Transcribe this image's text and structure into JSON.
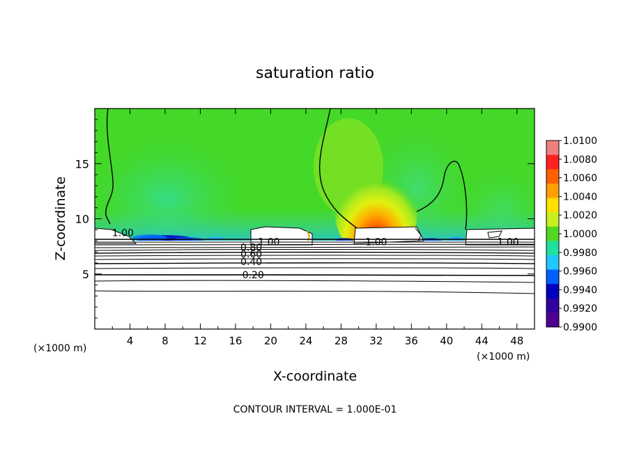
{
  "chart_data": {
    "type": "heatmap",
    "title": "saturation ratio",
    "xlabel": "X-coordinate",
    "ylabel": "Z-coordinate",
    "x_unit_label_left": "(×1000 m)",
    "x_unit_label_right": "(×1000 m)",
    "footer": "CONTOUR INTERVAL = 1.000E-01",
    "xlim": [
      0,
      50
    ],
    "ylim": [
      0,
      20
    ],
    "x_ticks": [
      4,
      8,
      12,
      16,
      20,
      24,
      28,
      32,
      36,
      40,
      44,
      48
    ],
    "y_ticks": [
      5,
      10,
      15
    ],
    "colorbar": {
      "labels": [
        "1.0100",
        "1.0080",
        "1.0060",
        "1.0040",
        "1.0020",
        "1.0000",
        "0.9980",
        "0.9960",
        "0.9940",
        "0.9920",
        "0.9900"
      ],
      "colors": [
        "#f08080",
        "#ff2020",
        "#ff6000",
        "#ffa000",
        "#ffe000",
        "#c8f020",
        "#50d820",
        "#20e0a0",
        "#20c8ff",
        "#0060ff",
        "#0000c0",
        "#3000a0",
        "#500090"
      ]
    },
    "contour_labels": [
      {
        "text": "0.20",
        "x": 18.0,
        "y": 4.8
      },
      {
        "text": "0.40",
        "x": 17.8,
        "y": 6.0
      },
      {
        "text": "0.60",
        "x": 17.8,
        "y": 6.7
      },
      {
        "text": "0.80",
        "x": 17.8,
        "y": 7.3
      },
      {
        "text": "1.00",
        "x": 19.8,
        "y": 7.8
      },
      {
        "text": "1.00",
        "x": 3.2,
        "y": 8.6
      },
      {
        "text": "1.00",
        "x": 32.0,
        "y": 7.8
      },
      {
        "text": "1.00",
        "x": 47.0,
        "y": 7.8
      }
    ]
  }
}
